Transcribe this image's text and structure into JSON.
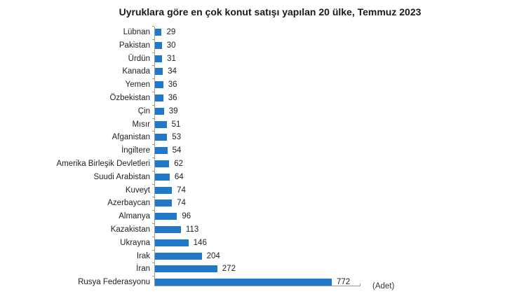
{
  "title": "Uyruklara göre en çok konut satışı yapılan 20 ülke, Temmuz 2023",
  "unit_label": "(Adet)",
  "colors": {
    "bar": "#1f78c8",
    "axis": "#9a9a9a",
    "text": "#222222"
  },
  "chart_data": {
    "type": "bar",
    "orientation": "horizontal",
    "title": "Uyruklara göre en çok konut satışı yapılan 20 ülke, Temmuz 2023",
    "xlabel": "(Adet)",
    "ylabel": "",
    "xlim": [
      0,
      900
    ],
    "grid": false,
    "legend": null,
    "data_labels": true,
    "categories": [
      "Lübnan",
      "Pakistan",
      "Ürdün",
      "Kanada",
      "Yemen",
      "Özbekistan",
      "Çin",
      "Mısır",
      "Afganistan",
      "İngiltere",
      "Amerika Birleşik Devletleri",
      "Suudi Arabistan",
      "Kuveyt",
      "Azerbaycan",
      "Almanya",
      "Kazakistan",
      "Ukrayna",
      "Irak",
      "İran",
      "Rusya Federasyonu"
    ],
    "values": [
      29,
      30,
      31,
      34,
      36,
      36,
      39,
      51,
      53,
      54,
      62,
      64,
      74,
      74,
      96,
      113,
      146,
      204,
      272,
      772
    ]
  }
}
